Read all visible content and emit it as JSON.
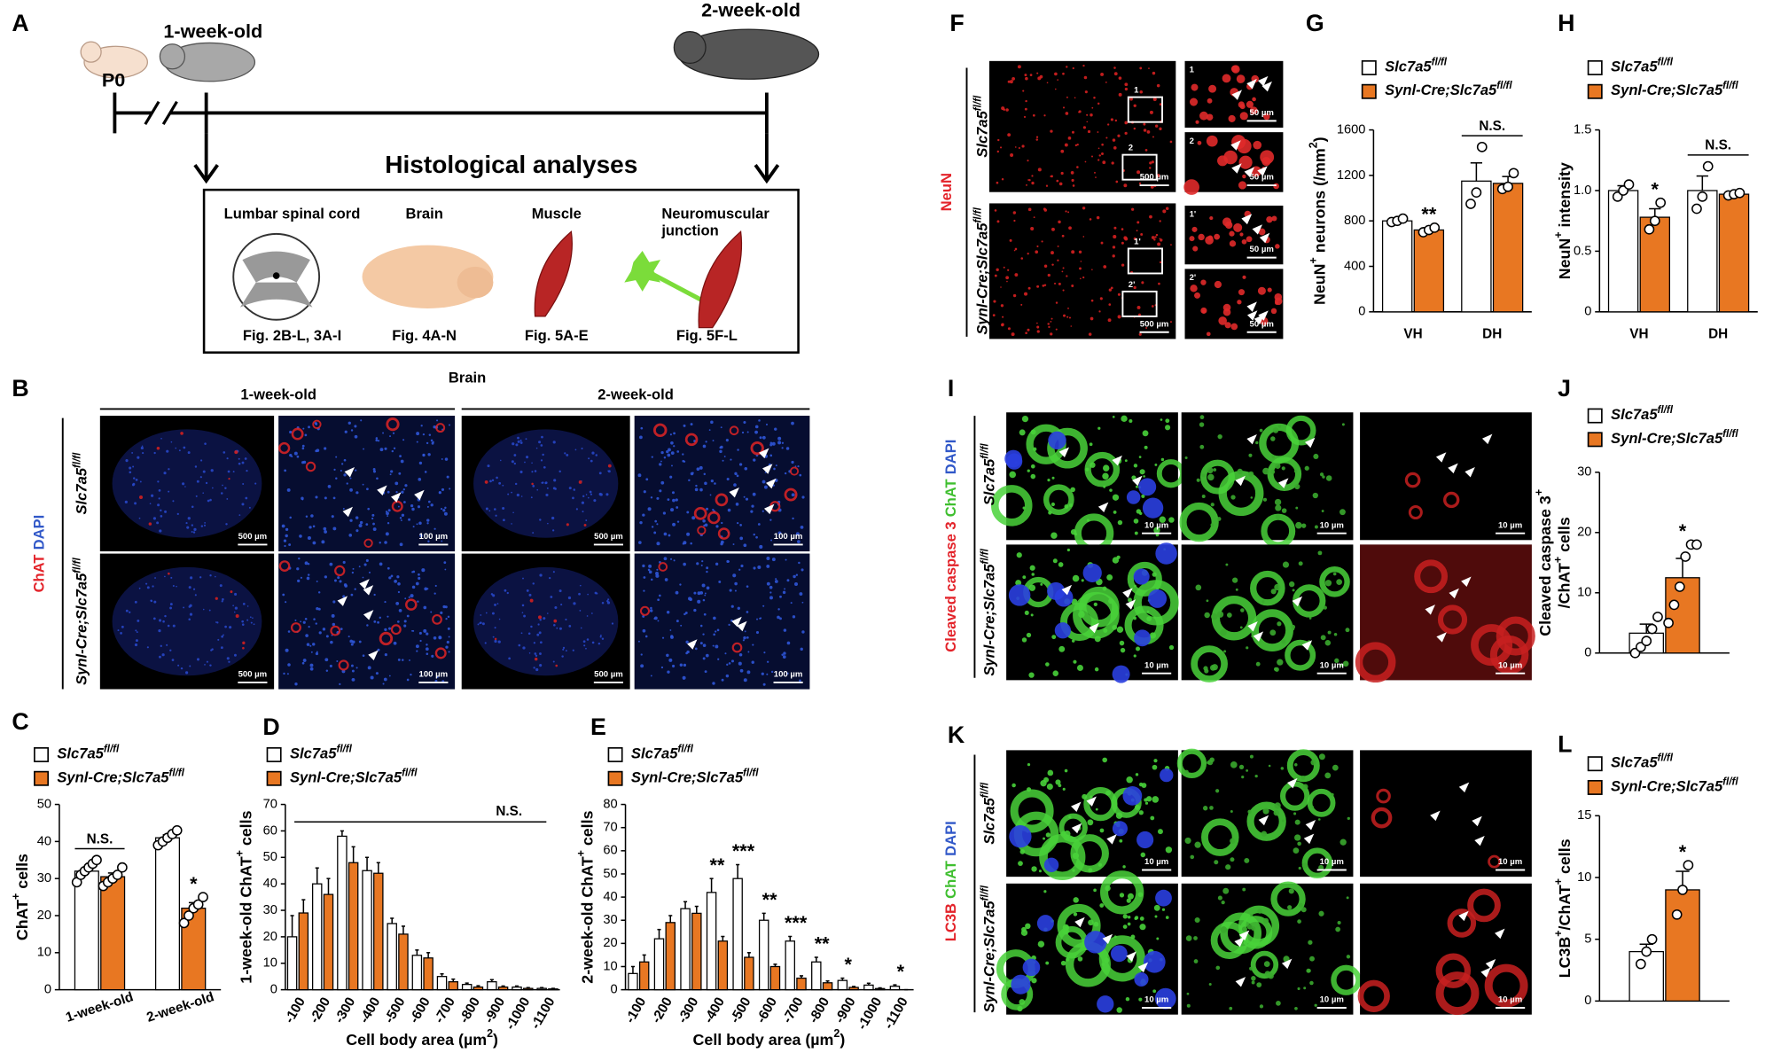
{
  "panel_labels": [
    "A",
    "B",
    "C",
    "D",
    "E",
    "F",
    "G",
    "H",
    "I",
    "J",
    "K",
    "L"
  ],
  "timeline": {
    "p0": "P0",
    "week1": "1-week-old",
    "week2": "2-week-old",
    "heading": "Histological analyses",
    "tissues": [
      {
        "name": [
          "Lumbar spinal cord"
        ],
        "figs": "Fig. 2B-L, 3A-I"
      },
      {
        "name": [
          "Brain"
        ],
        "figs": "Fig. 4A-N"
      },
      {
        "name": [
          "Muscle"
        ],
        "figs": "Fig. 5A-E"
      },
      {
        "name": [
          "Neuromuscular",
          "junction"
        ],
        "figs": "Fig. 5F-L"
      }
    ]
  },
  "genotypes": {
    "control": [
      {
        "text": "Slc7a5"
      },
      {
        "text": "fl/fl",
        "sup": true
      }
    ],
    "cko": [
      {
        "text": "Synl-Cre;Slc7a5"
      },
      {
        "text": "fl/fl",
        "sup": true
      }
    ]
  },
  "panel_b": {
    "title": "Brain",
    "columns": [
      "1-week-old",
      "2-week-old"
    ],
    "stain": [
      {
        "text": "ChAT",
        "color": "#e3232a"
      },
      {
        "text": "DAPI",
        "color": "#3158c8"
      }
    ],
    "scale_bars": [
      "500 µm",
      "100 µm"
    ]
  },
  "panel_f": {
    "stain": [
      {
        "text": "NeuN",
        "color": "#e3232a"
      }
    ],
    "scale_bars": [
      "500 µm",
      "50 µm"
    ],
    "insets": [
      "1",
      "2",
      "1'",
      "2'"
    ]
  },
  "panel_i": {
    "stain": [
      {
        "text": "Cleaved caspase 3",
        "color": "#e3232a"
      },
      {
        "text": "ChAT",
        "color": "#3fbf2f"
      },
      {
        "text": "DAPI",
        "color": "#3158c8"
      }
    ],
    "scale_bar": "10 µm"
  },
  "panel_k": {
    "stain": [
      {
        "text": "LC3B",
        "color": "#e3232a"
      },
      {
        "text": "ChAT",
        "color": "#3fbf2f"
      },
      {
        "text": "DAPI",
        "color": "#3158c8"
      }
    ],
    "scale_bar": "10 µm"
  },
  "chart_data": [
    {
      "type": "bar",
      "ylabel": [
        [
          {
            "text": "ChAT"
          },
          {
            "text": "+",
            "sup": true
          },
          {
            "text": " cells"
          }
        ]
      ],
      "categories": [
        "1-week-old",
        "2-week-old"
      ],
      "series": [
        {
          "name": [
            {
              "text": "Slc7a5"
            },
            {
              "text": "fl/fl",
              "sup": true
            }
          ],
          "color": "#ffffff",
          "values": [
            32,
            41
          ],
          "errors": [
            1,
            0.8
          ],
          "points": [
            [
              29,
              31,
              32,
              33,
              34,
              35
            ],
            [
              39,
              40,
              41,
              42,
              43
            ]
          ]
        },
        {
          "name": [
            {
              "text": "Synl-Cre;Slc7a5"
            },
            {
              "text": "fl/fl",
              "sup": true
            }
          ],
          "color": "#e87722",
          "values": [
            30.5,
            22
          ],
          "errors": [
            1,
            1.5
          ],
          "points": [
            [
              28,
              29,
              30,
              31,
              33
            ],
            [
              18,
              20,
              22,
              23,
              25
            ]
          ]
        }
      ],
      "ylim": [
        0,
        50
      ],
      "yticks": [
        0,
        10,
        20,
        30,
        40,
        50
      ],
      "significance": [
        "N.S.",
        "*"
      ]
    },
    {
      "type": "bar",
      "ylabel": [
        [
          {
            "text": "1-week-old ChAT"
          },
          {
            "text": "+",
            "sup": true
          },
          {
            "text": " cells"
          }
        ]
      ],
      "xlabel": [
        {
          "text": "Cell body area (µm"
        },
        {
          "text": "2",
          "sup": true
        },
        {
          "text": ")"
        }
      ],
      "categories": [
        "-100",
        "-200",
        "-300",
        "-400",
        "-500",
        "-600",
        "-700",
        "-800",
        "-900",
        "-1000",
        "-1100"
      ],
      "series": [
        {
          "name": [
            {
              "text": "Slc7a5"
            },
            {
              "text": "fl/fl",
              "sup": true
            }
          ],
          "color": "#ffffff",
          "values": [
            20,
            40,
            58,
            45,
            25,
            13,
            5,
            2,
            3,
            1,
            0.5
          ],
          "errors": [
            8,
            6,
            2,
            5,
            2,
            2,
            1,
            0.5,
            0.8,
            0.4,
            0.3
          ]
        },
        {
          "name": [
            {
              "text": "Synl-Cre;Slc7a5"
            },
            {
              "text": "fl/fl",
              "sup": true
            }
          ],
          "color": "#e87722",
          "values": [
            29,
            36,
            48,
            44,
            21,
            12,
            3,
            1,
            1,
            0.5,
            0.3
          ],
          "errors": [
            5,
            6,
            6,
            4,
            3,
            2,
            1,
            0.5,
            0.4,
            0.3,
            0.2
          ]
        }
      ],
      "ylim": [
        0,
        70
      ],
      "yticks": [
        0,
        10,
        20,
        30,
        40,
        50,
        60,
        70
      ],
      "span_significance": "N.S."
    },
    {
      "type": "bar",
      "ylabel": [
        [
          {
            "text": "2-week-old ChAT"
          },
          {
            "text": "+",
            "sup": true
          },
          {
            "text": " cells"
          }
        ]
      ],
      "xlabel": [
        {
          "text": "Cell body area (µm"
        },
        {
          "text": "2",
          "sup": true
        },
        {
          "text": ")"
        }
      ],
      "categories": [
        "-100",
        "-200",
        "-300",
        "-400",
        "-500",
        "-600",
        "-700",
        "-800",
        "-900",
        "-1000",
        "-1100"
      ],
      "series": [
        {
          "name": [
            {
              "text": "Slc7a5"
            },
            {
              "text": "fl/fl",
              "sup": true
            }
          ],
          "color": "#ffffff",
          "values": [
            7,
            22,
            35,
            42,
            48,
            30,
            21,
            12,
            4,
            2,
            1.5
          ],
          "errors": [
            3,
            4,
            3,
            6,
            6,
            3,
            2,
            2,
            1,
            0.8,
            0.6
          ]
        },
        {
          "name": [
            {
              "text": "Synl-Cre;Slc7a5"
            },
            {
              "text": "fl/fl",
              "sup": true
            }
          ],
          "color": "#e87722",
          "values": [
            12,
            29,
            33,
            21,
            14,
            10,
            5,
            3,
            1,
            0.5,
            0
          ],
          "errors": [
            3,
            3,
            3,
            2,
            2,
            1,
            1,
            0.8,
            0.4,
            0.3,
            0
          ]
        }
      ],
      "ylim": [
        0,
        80
      ],
      "yticks": [
        0,
        10,
        20,
        30,
        40,
        50,
        60,
        70,
        80
      ],
      "significance": [
        null,
        null,
        null,
        "**",
        "***",
        "**",
        "***",
        "**",
        "*",
        null,
        "*"
      ]
    },
    {
      "type": "bar",
      "ylabel": [
        [
          {
            "text": "NeuN"
          },
          {
            "text": "+",
            "sup": true
          },
          {
            "text": " neurons (/mm"
          },
          {
            "text": "2",
            "sup": true
          },
          {
            "text": ")"
          }
        ]
      ],
      "categories": [
        "VH",
        "DH"
      ],
      "series": [
        {
          "name": [
            {
              "text": "Slc7a5"
            },
            {
              "text": "fl/fl",
              "sup": true
            }
          ],
          "color": "#ffffff",
          "values": [
            800,
            1150
          ],
          "errors": [
            15,
            160
          ],
          "points": [
            [
              790,
              800,
              820
            ],
            [
              950,
              1050,
              1450
            ]
          ]
        },
        {
          "name": [
            {
              "text": "Synl-Cre;Slc7a5"
            },
            {
              "text": "fl/fl",
              "sup": true
            }
          ],
          "color": "#e87722",
          "values": [
            720,
            1130
          ],
          "errors": [
            20,
            60
          ],
          "points": [
            [
              700,
              720,
              740
            ],
            [
              1080,
              1100,
              1220
            ]
          ]
        }
      ],
      "ylim": [
        0,
        1600
      ],
      "yticks": [
        0,
        400,
        800,
        1200,
        1600
      ],
      "significance": [
        "**",
        "N.S."
      ]
    },
    {
      "type": "bar",
      "ylabel": [
        [
          {
            "text": "NeuN"
          },
          {
            "text": "+",
            "sup": true
          },
          {
            "text": " intensity"
          }
        ]
      ],
      "categories": [
        "VH",
        "DH"
      ],
      "series": [
        {
          "name": [
            {
              "text": "Slc7a5"
            },
            {
              "text": "fl/fl",
              "sup": true
            }
          ],
          "color": "#ffffff",
          "values": [
            1,
            1
          ],
          "errors": [
            0.04,
            0.12
          ],
          "points": [
            [
              0.95,
              1,
              1.05
            ],
            [
              0.85,
              0.95,
              1.2
            ]
          ]
        },
        {
          "name": [
            {
              "text": "Synl-Cre;Slc7a5"
            },
            {
              "text": "fl/fl",
              "sup": true
            }
          ],
          "color": "#e87722",
          "values": [
            0.78,
            0.97
          ],
          "errors": [
            0.07,
            0.01
          ],
          "points": [
            [
              0.68,
              0.75,
              0.9
            ],
            [
              0.96,
              0.97,
              0.98
            ]
          ]
        }
      ],
      "ylim": [
        0,
        1.5
      ],
      "yticks": [
        0,
        0.5,
        {
          "value": 1,
          "label": "1.0"
        },
        1.5
      ],
      "significance": [
        "*",
        "N.S."
      ]
    },
    {
      "type": "bar",
      "ylabel": [
        [
          {
            "text": "Cleaved caspase 3"
          },
          {
            "text": "+",
            "sup": true
          }
        ],
        [
          {
            "text": "/ChAT"
          },
          {
            "text": "+",
            "sup": true
          },
          {
            "text": " cells"
          }
        ]
      ],
      "categories": [
        null
      ],
      "series": [
        {
          "name": [
            {
              "text": "Slc7a5"
            },
            {
              "text": "fl/fl",
              "sup": true
            }
          ],
          "color": "#ffffff",
          "values": [
            3.3
          ],
          "errors": [
            1.5
          ],
          "points": [
            [
              0,
              1,
              2,
              4,
              6
            ]
          ]
        },
        {
          "name": [
            {
              "text": "Synl-Cre;Slc7a5"
            },
            {
              "text": "fl/fl",
              "sup": true
            }
          ],
          "color": "#e87722",
          "values": [
            12.5
          ],
          "errors": [
            3.2
          ],
          "points": [
            [
              5,
              8,
              11,
              16,
              18,
              18
            ]
          ]
        }
      ],
      "ylim": [
        0,
        30
      ],
      "yticks": [
        0,
        10,
        20,
        30
      ],
      "significance": [
        "*"
      ]
    },
    {
      "type": "bar",
      "ylabel": [
        [
          {
            "text": "LC3B"
          },
          {
            "text": "+",
            "sup": true
          },
          {
            "text": "/ChAT"
          },
          {
            "text": "+",
            "sup": true
          },
          {
            "text": " cells"
          }
        ]
      ],
      "categories": [
        null
      ],
      "series": [
        {
          "name": [
            {
              "text": "Slc7a5"
            },
            {
              "text": "fl/fl",
              "sup": true
            }
          ],
          "color": "#ffffff",
          "values": [
            4
          ],
          "errors": [
            0.6
          ],
          "points": [
            [
              3,
              4,
              5
            ]
          ]
        },
        {
          "name": [
            {
              "text": "Synl-Cre;Slc7a5"
            },
            {
              "text": "fl/fl",
              "sup": true
            }
          ],
          "color": "#e87722",
          "values": [
            9
          ],
          "errors": [
            1.5
          ],
          "points": [
            [
              7,
              9,
              11
            ]
          ]
        }
      ],
      "ylim": [
        0,
        15
      ],
      "yticks": [
        0,
        5,
        10,
        15
      ],
      "significance": [
        "*"
      ]
    }
  ]
}
